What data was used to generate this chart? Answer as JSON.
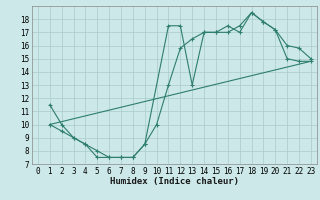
{
  "line1_x": [
    1,
    2,
    3,
    4,
    5,
    6,
    7,
    8,
    9,
    11,
    12,
    13,
    14,
    15,
    16,
    17,
    18,
    19,
    20,
    21,
    22,
    23
  ],
  "line1_y": [
    11.5,
    10,
    9,
    8.5,
    7.5,
    7.5,
    7.5,
    7.5,
    8.5,
    17.5,
    17.5,
    13,
    17,
    17,
    17.5,
    17,
    18.5,
    17.8,
    17.2,
    15,
    14.8,
    14.8
  ],
  "line2_x": [
    1,
    2,
    3,
    4,
    5,
    6,
    7,
    8,
    9,
    10,
    11,
    12,
    13,
    14,
    15,
    16,
    17,
    18,
    19,
    20,
    21,
    22,
    23
  ],
  "line2_y": [
    10,
    9.5,
    9,
    8.5,
    8,
    7.5,
    7.5,
    7.5,
    8.5,
    10,
    13,
    15.8,
    16.5,
    17,
    17,
    17,
    17.5,
    18.5,
    17.8,
    17.2,
    16,
    15.8,
    15
  ],
  "line3_x": [
    1,
    23
  ],
  "line3_y": [
    10,
    14.8
  ],
  "color": "#2e7d6e",
  "bg_color": "#cce8e8",
  "grid_color": "#aacccc",
  "xlabel": "Humidex (Indice chaleur)",
  "xlim": [
    -0.5,
    23.5
  ],
  "ylim": [
    7,
    19
  ],
  "yticks": [
    7,
    8,
    9,
    10,
    11,
    12,
    13,
    14,
    15,
    16,
    17,
    18
  ],
  "xticks": [
    0,
    1,
    2,
    3,
    4,
    5,
    6,
    7,
    8,
    9,
    10,
    11,
    12,
    13,
    14,
    15,
    16,
    17,
    18,
    19,
    20,
    21,
    22,
    23
  ],
  "label_fontsize": 6.5,
  "tick_fontsize": 5.5
}
